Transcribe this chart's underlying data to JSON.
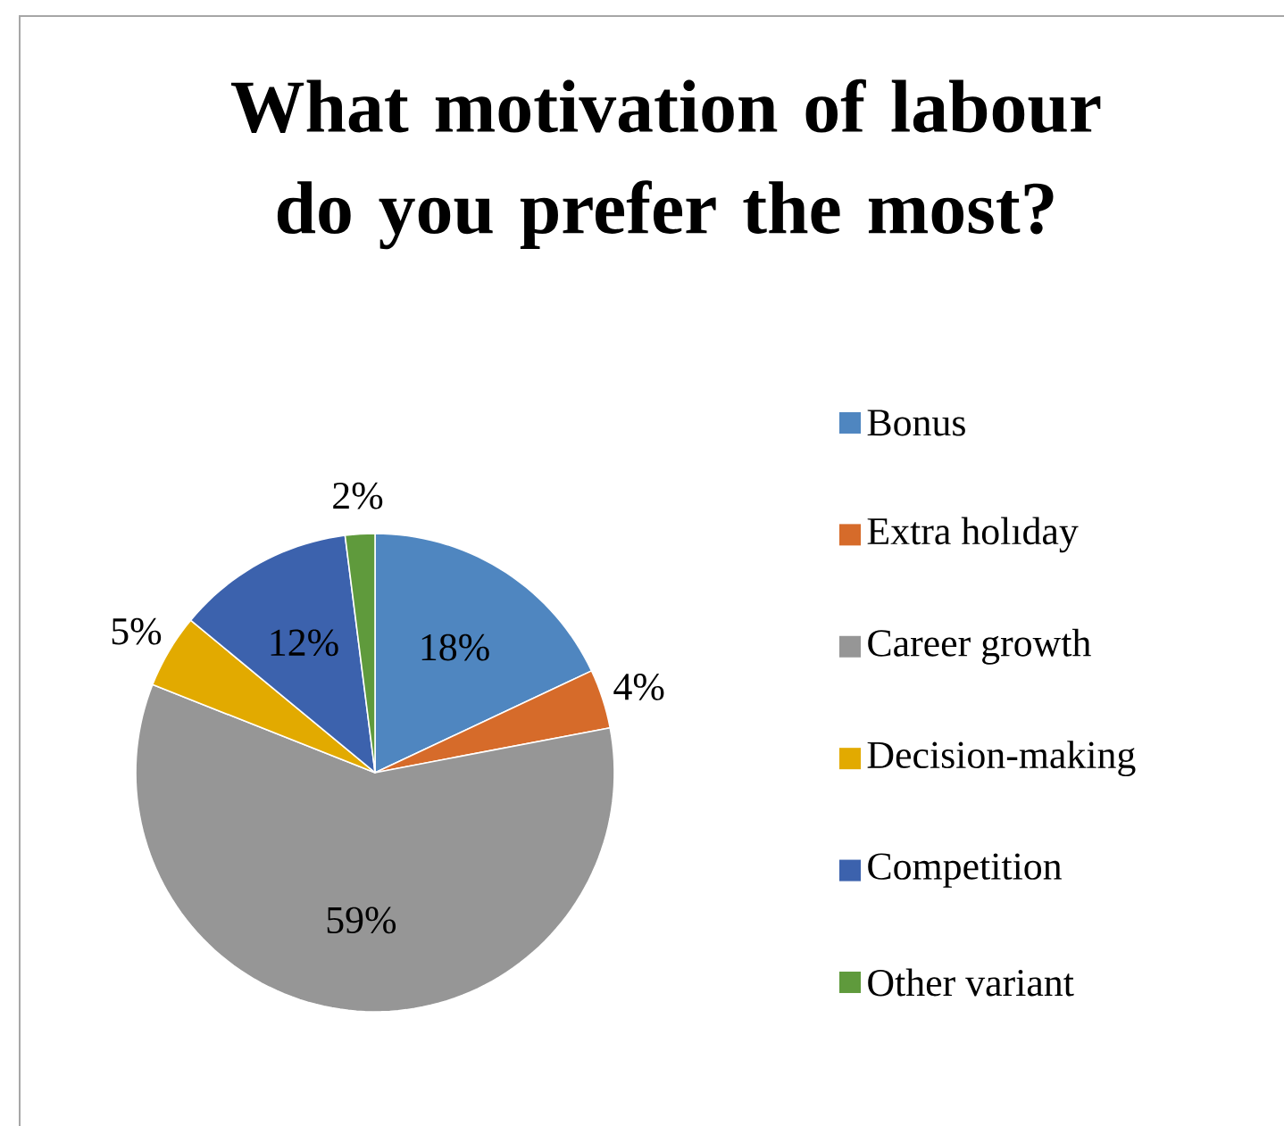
{
  "chart_data": {
    "type": "pie",
    "title": "What motivation of labour do you prefer the most?",
    "categories": [
      "Bonus",
      "Extra holıday",
      "Career growth",
      "Decision-making",
      "Competition",
      "Other variant"
    ],
    "values": [
      18,
      4,
      59,
      5,
      12,
      2
    ],
    "value_labels": [
      "18%",
      "4%",
      "59%",
      "5%",
      "12%",
      "2%"
    ],
    "colors": [
      "#4f86c0",
      "#d66b2a",
      "#969696",
      "#e2aa00",
      "#3c62ad",
      "#5f9a3c"
    ],
    "legend": "right"
  }
}
